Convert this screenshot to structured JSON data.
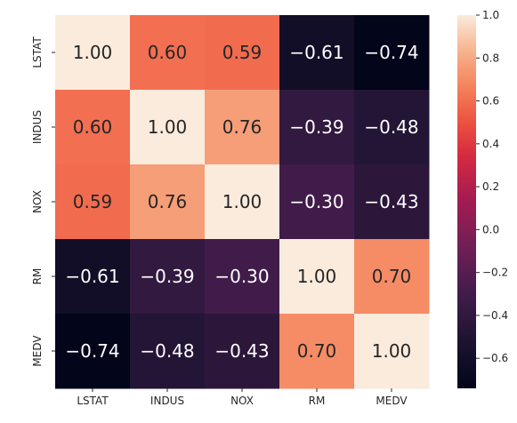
{
  "chart_data": {
    "type": "heatmap",
    "title": "",
    "xlabel": "",
    "ylabel": "",
    "x_labels": [
      "LSTAT",
      "INDUS",
      "NOX",
      "RM",
      "MEDV"
    ],
    "y_labels": [
      "LSTAT",
      "INDUS",
      "NOX",
      "RM",
      "MEDV"
    ],
    "values": [
      [
        1.0,
        0.6,
        0.59,
        -0.61,
        -0.74
      ],
      [
        0.6,
        1.0,
        0.76,
        -0.39,
        -0.48
      ],
      [
        0.59,
        0.76,
        1.0,
        -0.3,
        -0.43
      ],
      [
        -0.61,
        -0.39,
        -0.3,
        1.0,
        0.7
      ],
      [
        -0.74,
        -0.48,
        -0.43,
        0.7,
        1.0
      ]
    ],
    "value_format": "2 decimals",
    "colormap": "rocket",
    "colorbar": {
      "range": [
        -0.74,
        1.0
      ],
      "ticks": [
        -0.6,
        -0.4,
        -0.2,
        0.0,
        0.2,
        0.4,
        0.6,
        0.8,
        1.0
      ],
      "tick_labels": [
        "−0.6",
        "−0.4",
        "−0.2",
        "0.0",
        "0.2",
        "0.4",
        "0.6",
        "0.8",
        "1.0"
      ]
    },
    "colors": {
      "annotation_light": "#ffffff",
      "annotation_dark": "#262626",
      "ticks": "#262626"
    }
  }
}
